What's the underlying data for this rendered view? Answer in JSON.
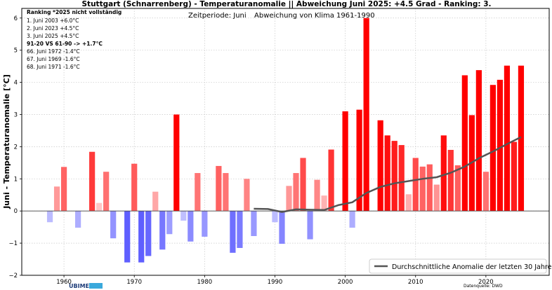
{
  "chart_data": {
    "type": "bar",
    "title": "Stuttgart (Schnarrenberg) - Temperaturanomalie || Abweichung Juni 2025: +4.5 Grad - Ranking: 3.",
    "subtitle_left": "Zeitperiode: Juni",
    "subtitle_right": "Abweichung von Klima 1961-1990",
    "ylabel": "Juni - Temperaturanomalie [°C]",
    "xlabel": "",
    "xlim": [
      1954,
      2029
    ],
    "ylim": [
      -2,
      6.3
    ],
    "yticks": [
      "6",
      "5",
      "4",
      "3",
      "2",
      "1",
      "0",
      "−1",
      "−2"
    ],
    "ytick_values": [
      6,
      5,
      4,
      3,
      2,
      1,
      0,
      -1,
      -2
    ],
    "xticks": [
      "1960",
      "1970",
      "1980",
      "1990",
      "2000",
      "2010",
      "2020"
    ],
    "xtick_values": [
      1960,
      1970,
      1980,
      1990,
      2000,
      2010,
      2020
    ],
    "grid": true,
    "years": [
      1958,
      1959,
      1960,
      1961,
      1962,
      1963,
      1964,
      1965,
      1966,
      1967,
      1968,
      1969,
      1970,
      1971,
      1972,
      1973,
      1974,
      1975,
      1976,
      1977,
      1978,
      1979,
      1980,
      1981,
      1982,
      1983,
      1984,
      1985,
      1986,
      1987,
      1988,
      1989,
      1990,
      1991,
      1992,
      1993,
      1994,
      1995,
      1996,
      1997,
      1998,
      1999,
      2000,
      2001,
      2002,
      2003,
      2004,
      2005,
      2006,
      2007,
      2008,
      2009,
      2010,
      2011,
      2012,
      2013,
      2014,
      2015,
      2016,
      2017,
      2018,
      2019,
      2020,
      2021,
      2022,
      2023,
      2024,
      2025
    ],
    "values": [
      -0.35,
      0.76,
      1.37,
      0,
      -0.52,
      0,
      1.84,
      0.25,
      1.22,
      -0.85,
      0,
      -1.6,
      1.47,
      -1.6,
      -1.4,
      0.6,
      -1.2,
      -0.72,
      3.0,
      -0.3,
      -0.95,
      1.18,
      -0.8,
      0,
      1.4,
      1.18,
      -1.3,
      -1.15,
      1.0,
      -0.78,
      0,
      0,
      -0.35,
      -1.02,
      0.78,
      1.18,
      1.65,
      -0.88,
      0.97,
      0.48,
      1.91,
      0,
      3.1,
      -0.52,
      3.15,
      6.0,
      0,
      2.82,
      2.35,
      2.18,
      2.05,
      0.52,
      1.65,
      1.38,
      1.45,
      0.82,
      2.35,
      1.9,
      1.42,
      4.22,
      2.98,
      4.38,
      1.22,
      3.92,
      4.08,
      4.52,
      2.15,
      4.52
    ],
    "series": [
      {
        "name": "Durchschnittliche Anomalie der letzten 30 Jahre",
        "x": [
          1987,
          1989,
          1991,
          1993,
          1995,
          1997,
          1999,
          2001,
          2003,
          2005,
          2007,
          2009,
          2011,
          2013,
          2015,
          2017,
          2019,
          2021,
          2023,
          2025
        ],
        "y": [
          0.07,
          0.06,
          -0.03,
          0.05,
          0.04,
          0.03,
          0.18,
          0.27,
          0.56,
          0.75,
          0.86,
          0.93,
          1.0,
          1.05,
          1.19,
          1.38,
          1.64,
          1.85,
          2.08,
          2.3
        ]
      }
    ],
    "ranking": {
      "header": "Ranking  *2025 nicht vollständig",
      "lines": [
        "1.  Juni 2003  +6.0°C",
        "2.  Juni 2023  +4.5°C",
        "3.  Juni 2025  +4.5°C"
      ],
      "comparison": "91-20  VS  61-90 -> +1.7°C",
      "bottom_lines": [
        "66.  Juni 1972  -1.4°C",
        "67.  Juni 1969  -1.6°C",
        "68.  Juni 1971  -1.6°C"
      ]
    },
    "legend": {
      "label": "Durchschnittliche Anomalie der letzten 30 Jahre",
      "placement": "bottom-right"
    },
    "logo_text": "UBIMET",
    "source": "Datenquelle: DWD"
  }
}
